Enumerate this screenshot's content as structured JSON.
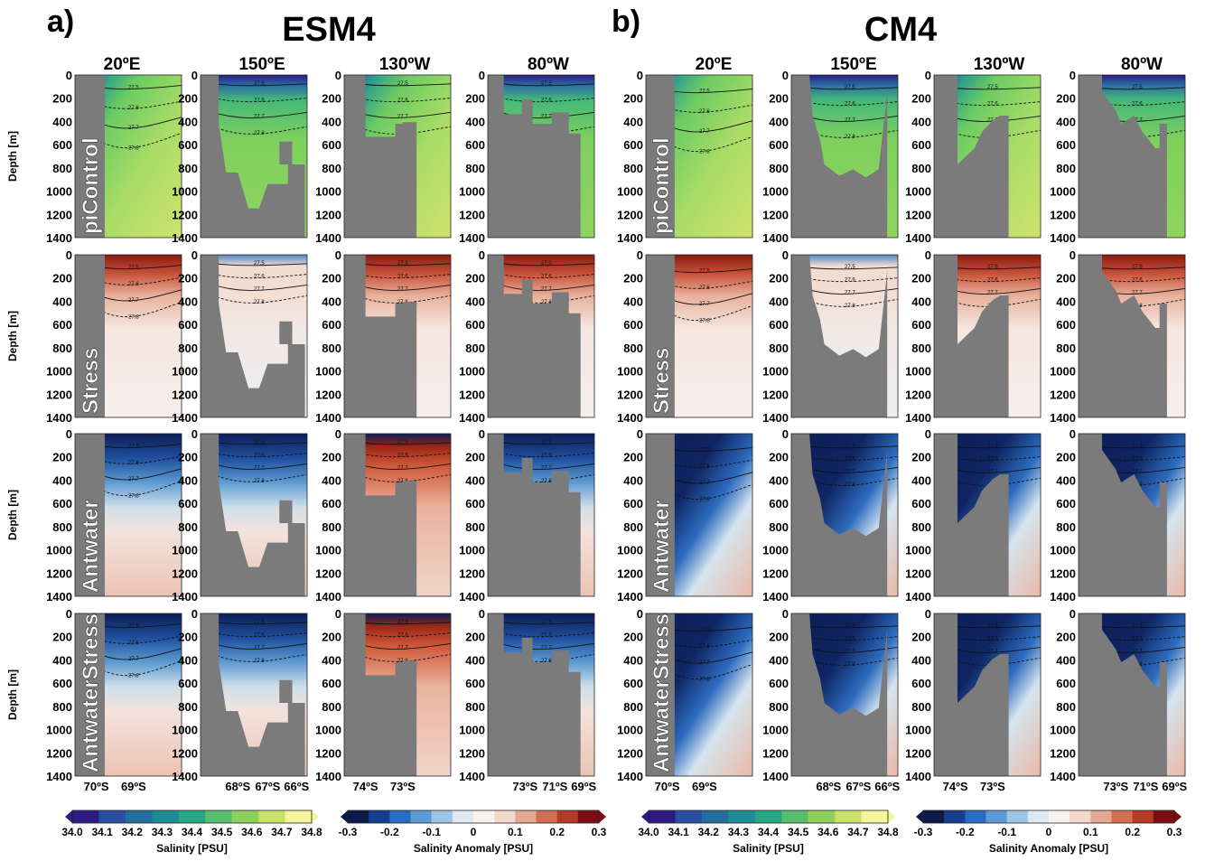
{
  "panels": [
    {
      "letter": "a)",
      "model": "ESM4"
    },
    {
      "letter": "b)",
      "model": "CM4"
    }
  ],
  "sections": [
    "20ºE",
    "150ºE",
    "130ºW",
    "80ºW"
  ],
  "experiments": [
    "piControl",
    "Stress",
    "Antwater",
    "AntwaterStress"
  ],
  "ylabel": "Depth [m]",
  "xticks": [
    [
      "70ºS",
      "69ºS"
    ],
    [
      "68ºS",
      "67ºS",
      "66ºS"
    ],
    [
      "74ºS",
      "73ºS"
    ],
    [
      "73ºS",
      "71ºS",
      "69ºS"
    ]
  ],
  "colorbars": [
    {
      "label": "Salinity [PSU]",
      "ticks": [
        "34.0",
        "34.1",
        "34.2",
        "34.3",
        "34.4",
        "34.5",
        "34.6",
        "34.7",
        "34.8"
      ],
      "colors": [
        "#2c1a7e",
        "#2a4fa0",
        "#236e9c",
        "#1f8b94",
        "#2aa584",
        "#55bd6c",
        "#8fd05c",
        "#c9e06a",
        "#f4f59c"
      ]
    },
    {
      "label": "Salinity Anomaly [PSU]",
      "ticks": [
        "-0.3",
        "-0.2",
        "-0.1",
        "0",
        "0.1",
        "0.2",
        "0.3"
      ],
      "colors": [
        "#0b1a48",
        "#163f8f",
        "#2a6cbf",
        "#5c9ad3",
        "#9ec5e3",
        "#dde8f0",
        "#f7f3f0",
        "#f3d8cc",
        "#e5a890",
        "#cf6e50",
        "#b33a25",
        "#7a0e12"
      ]
    }
  ],
  "contour_labels": [
    "27.4",
    "27.5",
    "27.6",
    "27.7",
    "27.8"
  ],
  "chart_data": {
    "type": "heatmap",
    "title": "",
    "ylim": [
      0,
      1400
    ],
    "yticks": [
      0,
      200,
      400,
      600,
      800,
      1000,
      1200,
      1400
    ],
    "fields": [
      {
        "model": "ESM4",
        "experiment": "piControl",
        "variable": "Salinity",
        "values_psu": {
          "20ºE": [
            34.0,
            34.7
          ],
          "150ºE": [
            34.0,
            34.6
          ],
          "130ºW": [
            34.0,
            34.7
          ],
          "80ºW": [
            34.1,
            34.8
          ]
        }
      },
      {
        "model": "ESM4",
        "experiment": "Stress",
        "variable": "Salinity Anomaly",
        "values_psu": {
          "20ºE": [
            -0.02,
            0.25
          ],
          "150ºE": [
            0.0,
            0.05
          ],
          "130ºW": [
            0.0,
            0.25
          ],
          "80ºW": [
            0.0,
            0.15
          ]
        }
      },
      {
        "model": "ESM4",
        "experiment": "Antwater",
        "variable": "Salinity Anomaly",
        "values_psu": {
          "20ºE": [
            -0.25,
            0.05
          ],
          "150ºE": [
            -0.3,
            0.05
          ],
          "130ºW": [
            -0.3,
            0.25
          ],
          "80ºW": [
            -0.15,
            0.05
          ]
        }
      },
      {
        "model": "ESM4",
        "experiment": "AntwaterStress",
        "variable": "Salinity Anomaly",
        "values_psu": {
          "20ºE": [
            -0.2,
            0.05
          ],
          "150ºE": [
            -0.3,
            0.1
          ],
          "130ºW": [
            -0.3,
            0.3
          ],
          "80ºW": [
            -0.2,
            0.2
          ]
        }
      },
      {
        "model": "CM4",
        "experiment": "piControl",
        "variable": "Salinity",
        "values_psu": {
          "20ºE": [
            34.0,
            34.6
          ],
          "150ºE": [
            34.1,
            34.6
          ],
          "130ºW": [
            34.0,
            34.7
          ],
          "80ºW": [
            34.1,
            34.7
          ]
        }
      },
      {
        "model": "CM4",
        "experiment": "Stress",
        "variable": "Salinity Anomaly",
        "values_psu": {
          "20ºE": [
            0.0,
            0.15
          ],
          "150ºE": [
            0.0,
            0.05
          ],
          "130ºW": [
            0.0,
            0.15
          ],
          "80ºW": [
            0.0,
            0.2
          ]
        }
      },
      {
        "model": "CM4",
        "experiment": "Antwater",
        "variable": "Salinity Anomaly",
        "values_psu": {
          "20ºE": [
            -0.3,
            0.1
          ],
          "150ºE": [
            -0.3,
            0.0
          ],
          "130ºW": [
            -0.3,
            0.0
          ],
          "80ºW": [
            -0.3,
            0.05
          ]
        }
      },
      {
        "model": "CM4",
        "experiment": "AntwaterStress",
        "variable": "Salinity Anomaly",
        "values_psu": {
          "20ºE": [
            -0.3,
            0.1
          ],
          "150ºE": [
            -0.3,
            0.1
          ],
          "130ºW": [
            -0.3,
            0.0
          ],
          "80ºW": [
            -0.3,
            0.0
          ]
        }
      }
    ]
  }
}
